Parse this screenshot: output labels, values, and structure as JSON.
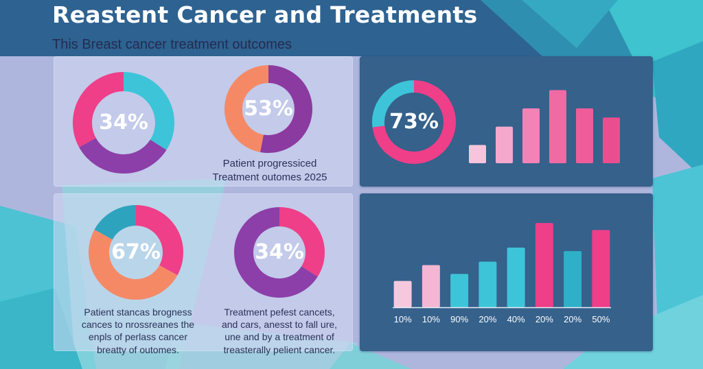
{
  "header": {
    "title": "Reastent Cancer and Treatments",
    "subtitle": "This Breast cancer treatment outcomes"
  },
  "captions": {
    "top_left": "Patient progressiced\nTreatment outomes 2025",
    "bottom_left": "Patient stancas brogness\ncances to nrossreanes the\nenpls of perlass cancer\nbreatty of outomes.",
    "bottom_right": "Treatment pefest cancets,\nand cars, anesst to fall ure,\nune and by a treatment of\ntreasterally pelient cancer."
  },
  "chart_data": [
    {
      "type": "pie",
      "variant": "donut",
      "label": "34%",
      "segments": [
        {
          "value": 34,
          "color": "#3ec4d8"
        },
        {
          "value": 33,
          "color": "#8c3fa8"
        },
        {
          "value": 33,
          "color": "#ee3f88"
        }
      ]
    },
    {
      "type": "pie",
      "variant": "donut",
      "label": "53%",
      "segments": [
        {
          "value": 53,
          "color": "#8b3aa0"
        },
        {
          "value": 47,
          "color": "#f58966"
        }
      ]
    },
    {
      "type": "pie",
      "variant": "donut",
      "label": "73%",
      "segments": [
        {
          "value": 73,
          "color": "#ee3f88"
        },
        {
          "value": 27,
          "color": "#3ec4d8"
        }
      ]
    },
    {
      "type": "bar",
      "values": [
        1,
        2,
        3,
        4,
        3,
        2.5
      ],
      "colors": [
        "#f6c4dc",
        "#f5a8cc",
        "#f382b6",
        "#f06aa4",
        "#ee5d9a",
        "#eb4e8e"
      ],
      "ylim": [
        0,
        4.2
      ]
    },
    {
      "type": "pie",
      "variant": "donut",
      "label": "67%",
      "segments": [
        {
          "value": 33,
          "color": "#ee3f88"
        },
        {
          "value": 50,
          "color": "#f58966"
        },
        {
          "value": 17,
          "color": "#2ea3be"
        }
      ]
    },
    {
      "type": "pie",
      "variant": "donut",
      "label": "34%",
      "segments": [
        {
          "value": 34,
          "color": "#ee3f88"
        },
        {
          "value": 66,
          "color": "#8c3fa8"
        }
      ]
    },
    {
      "type": "bar",
      "categories": [
        "10%",
        "10%",
        "90%",
        "20%",
        "40%",
        "20%",
        "20%",
        "50%"
      ],
      "values": [
        1.5,
        2.4,
        1.9,
        2.6,
        3.4,
        4.8,
        3.2,
        4.4
      ],
      "colors": [
        "#f6c8de",
        "#f4b6d2",
        "#3ec4d8",
        "#3ec4d8",
        "#3ec4d8",
        "#ee3f88",
        "#2eb0c8",
        "#ee3f88"
      ],
      "ylim": [
        0,
        5
      ]
    }
  ]
}
